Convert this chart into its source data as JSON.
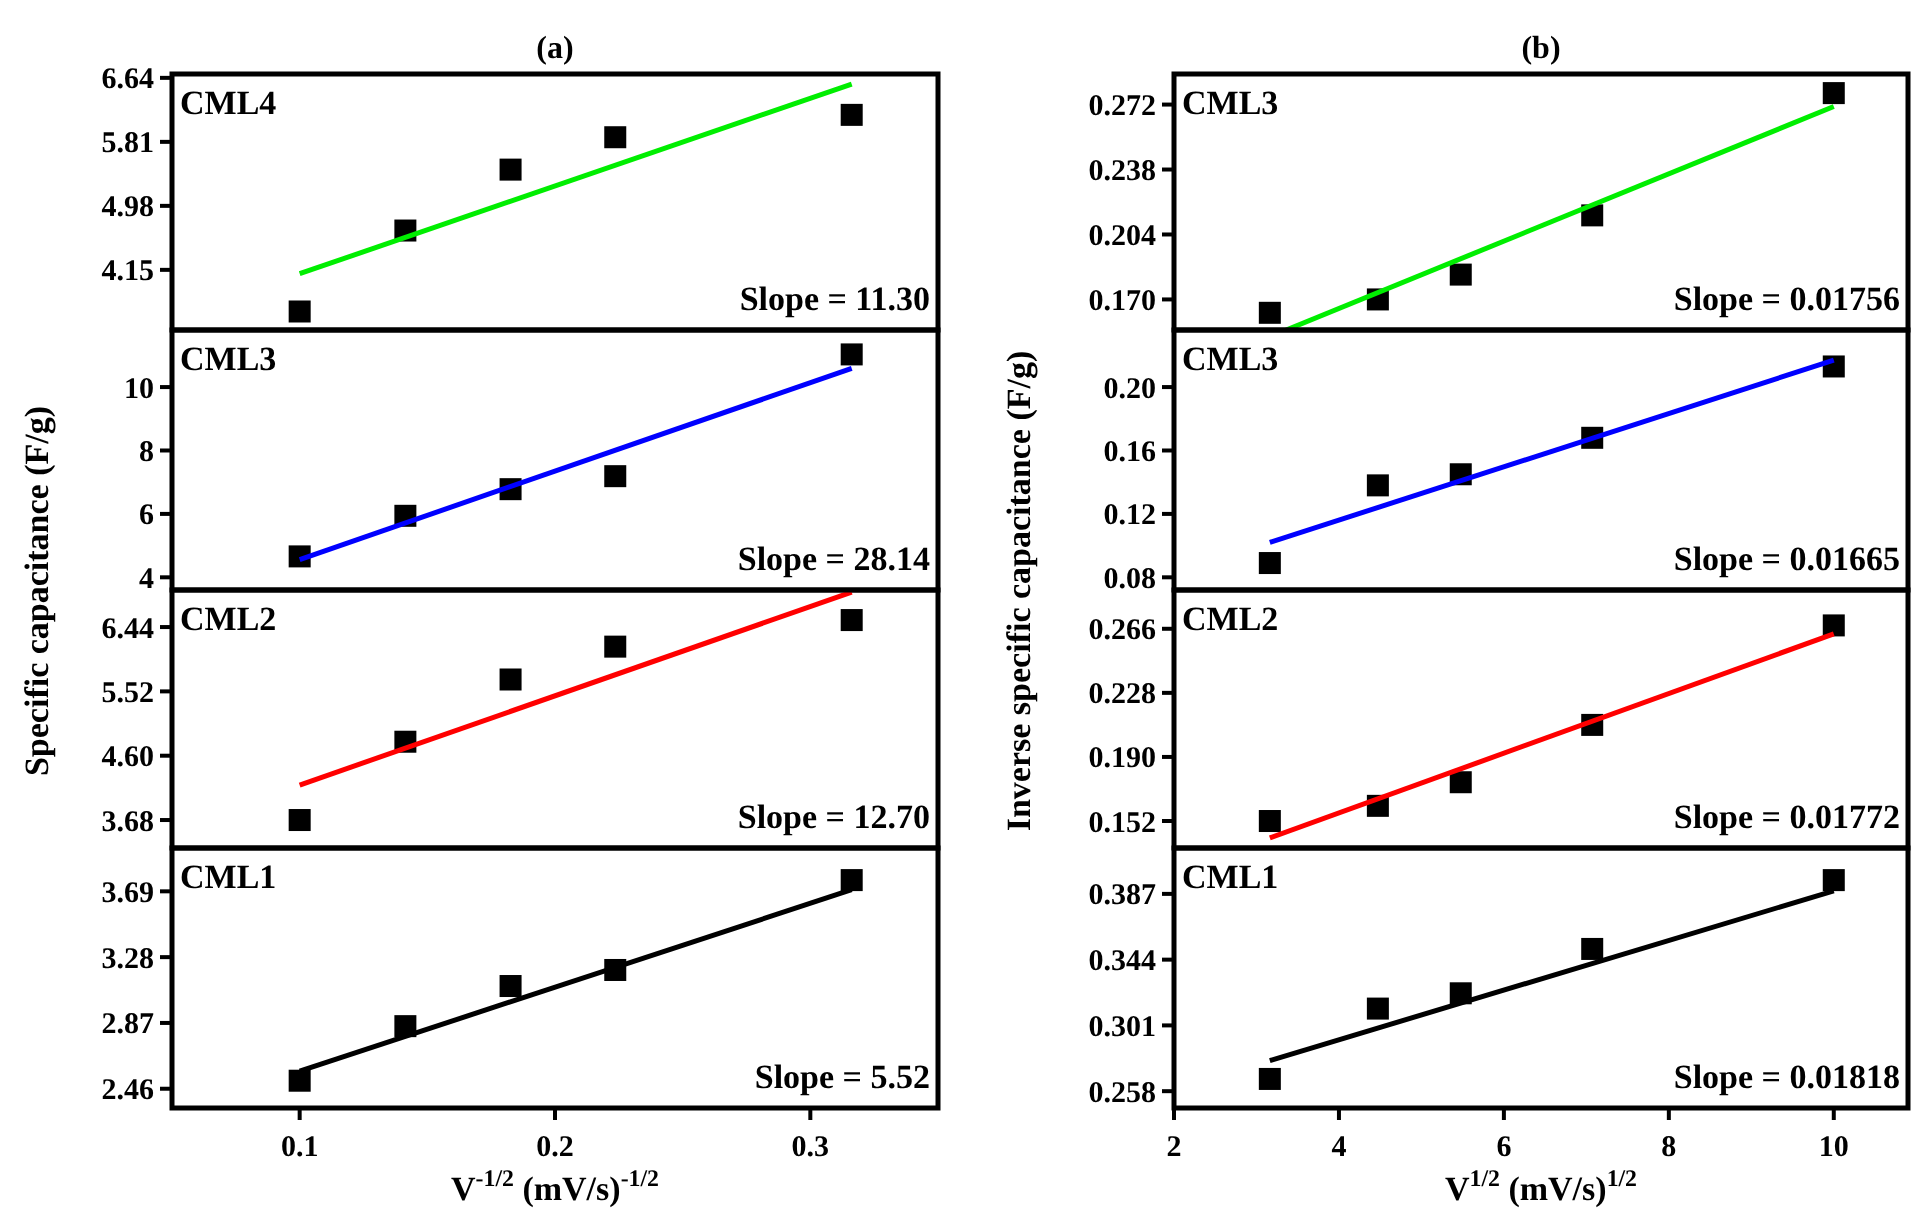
{
  "chart_data": [
    {
      "type": "scatter",
      "title": "(a)",
      "ylabel": "Specific capacitance (F/g)",
      "x": [
        0.1,
        0.1414,
        0.1826,
        0.2236,
        0.3162
      ],
      "xlim": [
        0.05,
        0.35
      ],
      "ylim": [
        3.37,
        6.69
      ],
      "yticks": [
        6.64,
        5.81,
        4.98,
        4.15
      ],
      "tick_labels": "y",
      "annotations": [
        "CML4",
        "Slope = 11.30"
      ],
      "series": [
        {
          "color": "#000000",
          "marker": "square",
          "values": [
            3.61,
            4.66,
            5.45,
            5.87,
            6.16
          ]
        },
        {
          "type": "line",
          "color": "#00ee00",
          "x": [
            0.1,
            0.3162
          ],
          "values": [
            4.1,
            6.56
          ]
        }
      ]
    },
    {
      "type": "scatter",
      "x": [
        0.1,
        0.1414,
        0.1826,
        0.2236,
        0.3162
      ],
      "xlim": [
        0.05,
        0.35
      ],
      "ylim": [
        3.6,
        11.8
      ],
      "yticks": [
        10,
        8,
        6,
        4
      ],
      "tick_labels": "y",
      "annotations": [
        "CML3",
        "Slope = 28.14"
      ],
      "series": [
        {
          "color": "#000000",
          "marker": "square",
          "values": [
            4.66,
            5.94,
            6.78,
            7.19,
            11.03
          ]
        },
        {
          "type": "line",
          "color": "#0000ff",
          "x": [
            0.1,
            0.3162
          ],
          "values": [
            4.56,
            10.59
          ]
        }
      ]
    },
    {
      "type": "scatter",
      "x": [
        0.1,
        0.1414,
        0.1826,
        0.2236,
        0.3162
      ],
      "xlim": [
        0.05,
        0.35
      ],
      "ylim": [
        3.28,
        6.97
      ],
      "yticks": [
        6.44,
        5.52,
        {
          "value": 4.6,
          "label": "4.60"
        },
        3.68
      ],
      "tick_labels": "y",
      "annotations": [
        "CML2",
        "Slope = 12.70"
      ],
      "series": [
        {
          "color": "#000000",
          "marker": "square",
          "values": [
            3.68,
            4.8,
            5.69,
            6.16,
            6.54
          ]
        },
        {
          "type": "line",
          "color": "#ff0000",
          "x": [
            0.1,
            0.3162
          ],
          "values": [
            4.18,
            6.94
          ]
        }
      ]
    },
    {
      "type": "scatter",
      "xlabel": "V$^{-1/2}$ (mV/s)$^{-1/2}$",
      "x": [
        0.1,
        0.1414,
        0.1826,
        0.2236,
        0.3162
      ],
      "xlim": [
        0.05,
        0.35
      ],
      "xticks": [
        0.1,
        0.2,
        0.3
      ],
      "ylim": [
        2.34,
        3.96
      ],
      "yticks": [
        3.69,
        3.28,
        2.87,
        2.46
      ],
      "annotations": [
        "CML1",
        "Slope = 5.52"
      ],
      "series": [
        {
          "color": "#000000",
          "marker": "square",
          "values": [
            2.51,
            2.85,
            3.1,
            3.2,
            3.76
          ]
        },
        {
          "type": "line",
          "color": "#000000",
          "x": [
            0.1,
            0.3162
          ],
          "values": [
            2.57,
            3.7
          ]
        }
      ]
    },
    {
      "type": "scatter",
      "title": "(b)",
      "ylabel": "Inverse specific capacitance (F/g)",
      "x": [
        3.162,
        4.472,
        5.477,
        7.071,
        10
      ],
      "xlim": [
        2,
        10.9
      ],
      "ylim": [
        0.154,
        0.288
      ],
      "yticks": [
        0.272,
        0.238,
        0.204,
        {
          "value": 0.17,
          "label": "0.170"
        }
      ],
      "tick_labels": "y",
      "annotations": [
        "CML3",
        "Slope = 0.01756"
      ],
      "series": [
        {
          "color": "#000000",
          "marker": "square",
          "values": [
            0.163,
            0.17,
            0.183,
            0.214,
            0.278
          ]
        },
        {
          "type": "line",
          "color": "#00ee00",
          "x": [
            3.36,
            10
          ],
          "values": [
            0.154,
            0.271
          ]
        }
      ]
    },
    {
      "type": "scatter",
      "x": [
        3.162,
        4.472,
        5.477,
        7.071,
        10
      ],
      "xlim": [
        2,
        10.9
      ],
      "ylim": [
        0.072,
        0.236
      ],
      "yticks": [
        {
          "value": 0.2,
          "label": "0.20"
        },
        0.16,
        0.12,
        0.08
      ],
      "tick_labels": "y",
      "annotations": [
        "CML3",
        "Slope = 0.01665"
      ],
      "series": [
        {
          "color": "#000000",
          "marker": "square",
          "values": [
            0.089,
            0.138,
            0.145,
            0.168,
            0.213
          ]
        },
        {
          "type": "line",
          "color": "#0000ff",
          "x": [
            3.162,
            10
          ],
          "values": [
            0.102,
            0.217
          ]
        }
      ]
    },
    {
      "type": "scatter",
      "x": [
        3.162,
        4.472,
        5.477,
        7.071,
        10
      ],
      "xlim": [
        2,
        10.9
      ],
      "ylim": [
        0.136,
        0.289
      ],
      "yticks": [
        0.266,
        0.228,
        {
          "value": 0.19,
          "label": "0.190"
        },
        0.152
      ],
      "tick_labels": "y",
      "annotations": [
        "CML2",
        "Slope = 0.01772"
      ],
      "series": [
        {
          "color": "#000000",
          "marker": "square",
          "values": [
            0.152,
            0.161,
            0.175,
            0.209,
            0.268
          ]
        },
        {
          "type": "line",
          "color": "#ff0000",
          "x": [
            3.162,
            10
          ],
          "values": [
            0.142,
            0.263
          ]
        }
      ]
    },
    {
      "type": "scatter",
      "xlabel": "V$^{1/2}$ (mV/s)$^{1/2}$",
      "x": [
        3.162,
        4.472,
        5.477,
        7.071,
        10
      ],
      "xlim": [
        2,
        10.9
      ],
      "xticks": [
        2,
        4,
        6,
        8,
        10
      ],
      "ylim": [
        0.247,
        0.417
      ],
      "yticks": [
        0.387,
        0.344,
        0.301,
        0.258
      ],
      "annotations": [
        "CML1",
        "Slope = 0.01818"
      ],
      "series": [
        {
          "color": "#000000",
          "marker": "square",
          "values": [
            0.266,
            0.312,
            0.322,
            0.351,
            0.396
          ]
        },
        {
          "type": "line",
          "color": "#000000",
          "x": [
            3.162,
            10
          ],
          "values": [
            0.278,
            0.389
          ]
        }
      ]
    }
  ]
}
